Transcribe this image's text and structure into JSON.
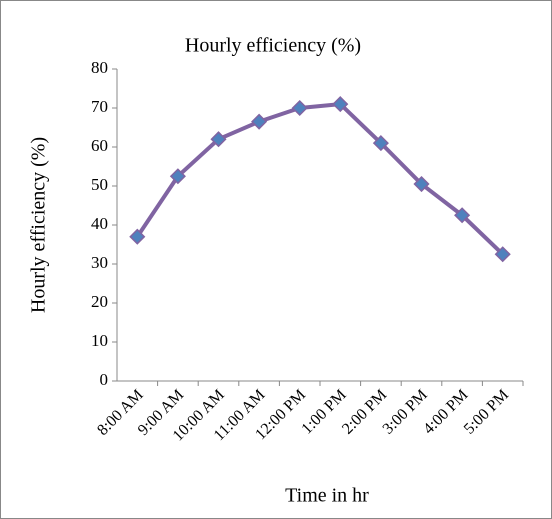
{
  "chart_data": {
    "type": "line",
    "title": "Hourly efficiency (%)",
    "x_label": "Time in hr",
    "y_label": "Hourly efficiency (%)",
    "categories": [
      "8:00 AM",
      "9:00 AM",
      "10:00 AM",
      "11:00 AM",
      "12:00 PM",
      "1:00 PM",
      "2:00 PM",
      "3:00 PM",
      "4:00 PM",
      "5:00 PM"
    ],
    "series": [
      {
        "name": "Hourly efficiency (%)",
        "color": "#8064a2",
        "marker_color": "#4f81bd",
        "values": [
          37,
          52.5,
          62,
          66.5,
          70,
          71,
          61,
          50.5,
          42.5,
          32.5
        ]
      }
    ],
    "ylim": [
      0,
      80
    ],
    "yticks": [
      0,
      10,
      20,
      30,
      40,
      50,
      60,
      70,
      80
    ],
    "grid": false
  }
}
